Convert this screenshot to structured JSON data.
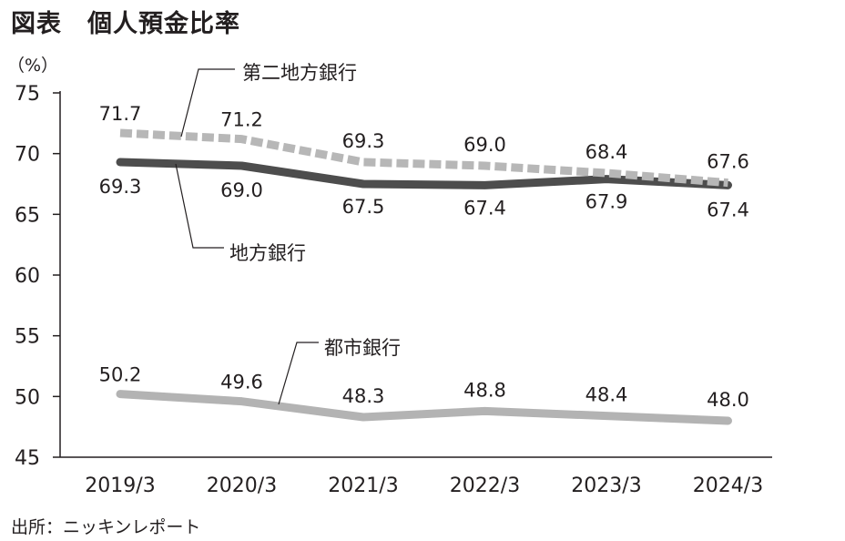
{
  "header": {
    "title": "図表　個人預金比率"
  },
  "footer": {
    "source": "出所：ニッキンレポート"
  },
  "chart_data": {
    "type": "line",
    "unit_label": "（%）",
    "categories": [
      "2019/3",
      "2020/3",
      "2021/3",
      "2022/3",
      "2023/3",
      "2024/3"
    ],
    "ylim": [
      45,
      75
    ],
    "yticks": [
      45,
      50,
      55,
      60,
      65,
      70,
      75
    ],
    "grid": false,
    "series": [
      {
        "name": "第二地方銀行",
        "values": [
          71.7,
          71.2,
          69.3,
          69.0,
          68.4,
          67.6
        ],
        "color": "#b7b7b7",
        "dashed": true
      },
      {
        "name": "地方銀行",
        "values": [
          69.3,
          69.0,
          67.5,
          67.4,
          67.9,
          67.4
        ],
        "color": "#4d4d4d",
        "dashed": false
      },
      {
        "name": "都市銀行",
        "values": [
          50.2,
          49.6,
          48.3,
          48.8,
          48.4,
          48.0
        ],
        "color": "#b3b3b3",
        "dashed": false
      }
    ]
  }
}
